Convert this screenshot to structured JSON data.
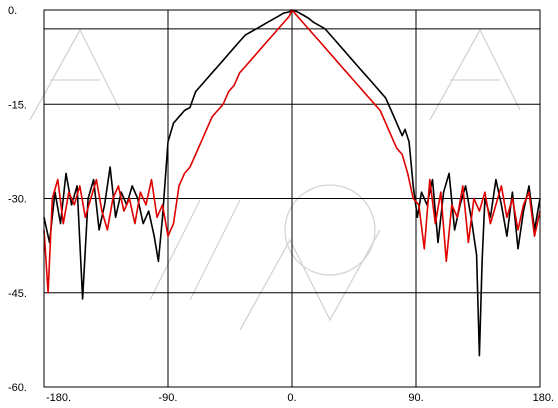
{
  "chart_data": {
    "type": "line",
    "title": "",
    "xlabel": "",
    "ylabel": "",
    "xlim": [
      -180,
      180
    ],
    "ylim": [
      -60,
      0
    ],
    "grid": true,
    "legend": "none",
    "x_ticks": [
      {
        "value": -180,
        "label": "-180."
      },
      {
        "value": -90,
        "label": "-90."
      },
      {
        "value": 0,
        "label": "0."
      },
      {
        "value": 90,
        "label": "90."
      },
      {
        "value": 180,
        "label": "180."
      }
    ],
    "y_ticks": [
      {
        "value": 0,
        "label": "0."
      },
      {
        "value": -15,
        "label": "-15."
      },
      {
        "value": -30,
        "label": "-30."
      },
      {
        "value": -45,
        "label": "-45."
      },
      {
        "value": -60,
        "label": "-60."
      }
    ],
    "series": [
      {
        "color": "#000000",
        "x": [
          -180,
          -176,
          -172,
          -168,
          -164,
          -160,
          -156,
          -152,
          -148,
          -144,
          -140,
          -136,
          -132,
          -128,
          -124,
          -120,
          -116,
          -112,
          -108,
          -104,
          -100,
          -97,
          -94,
          -90,
          -86,
          -82,
          -78,
          -74,
          -70,
          -66,
          -62,
          -58,
          -54,
          -50,
          -46,
          -42,
          -38,
          -34,
          -30,
          -26,
          -22,
          -18,
          -14,
          -10,
          -6,
          -2,
          0,
          4,
          8,
          12,
          16,
          20,
          24,
          28,
          32,
          36,
          40,
          44,
          48,
          52,
          56,
          60,
          64,
          68,
          72,
          76,
          80,
          82,
          85,
          88,
          91,
          94,
          98,
          102,
          106,
          110,
          114,
          118,
          122,
          126,
          130,
          134,
          136,
          138,
          140,
          144,
          148,
          152,
          156,
          160,
          164,
          168,
          172,
          176,
          180
        ],
        "y": [
          -33,
          -37,
          -29,
          -34,
          -26,
          -31,
          -28,
          -46,
          -30,
          -27,
          -35,
          -31,
          -25,
          -33,
          -29,
          -31,
          -28,
          -30,
          -34,
          -32,
          -36,
          -40,
          -33,
          -21,
          -18,
          -17,
          -16,
          -15.5,
          -13,
          -12,
          -11,
          -10,
          -9,
          -8,
          -7,
          -6,
          -5,
          -4,
          -3.5,
          -3,
          -2.5,
          -2,
          -1.5,
          -1,
          -0.5,
          -0.3,
          0,
          -0.3,
          -0.8,
          -1.3,
          -2,
          -2.5,
          -3,
          -4,
          -5,
          -6,
          -7,
          -8,
          -9,
          -10,
          -11,
          -12,
          -13,
          -14,
          -16,
          -18,
          -20,
          -19,
          -21,
          -28,
          -33,
          -29,
          -31,
          -27,
          -37,
          -29,
          -26,
          -35,
          -31,
          -28,
          -33,
          -39,
          -55,
          -40,
          -30,
          -33,
          -27,
          -31,
          -36,
          -29,
          -38,
          -32,
          -28,
          -35,
          -30
        ],
        "values_in": "dB"
      },
      {
        "color": "#e00000",
        "x": [
          -180,
          -177,
          -174,
          -170,
          -166,
          -162,
          -158,
          -154,
          -150,
          -146,
          -142,
          -138,
          -134,
          -130,
          -126,
          -122,
          -118,
          -114,
          -110,
          -106,
          -102,
          -98,
          -94,
          -90,
          -86,
          -82,
          -78,
          -74,
          -70,
          -66,
          -62,
          -58,
          -54,
          -50,
          -46,
          -42,
          -38,
          -34,
          -30,
          -26,
          -22,
          -18,
          -14,
          -10,
          -6,
          -2,
          0,
          4,
          8,
          12,
          16,
          20,
          24,
          28,
          32,
          36,
          40,
          44,
          48,
          52,
          56,
          60,
          64,
          68,
          72,
          76,
          80,
          84,
          88,
          92,
          96,
          100,
          104,
          108,
          112,
          116,
          120,
          124,
          128,
          132,
          136,
          140,
          144,
          148,
          152,
          156,
          160,
          164,
          168,
          172,
          176,
          180
        ],
        "y": [
          -35,
          -45,
          -30,
          -27,
          -34,
          -29,
          -31,
          -28,
          -33,
          -30,
          -27,
          -32,
          -35,
          -30,
          -28,
          -32,
          -30,
          -34,
          -29,
          -31,
          -27,
          -33,
          -31,
          -36,
          -34,
          -28,
          -26,
          -25,
          -23,
          -21,
          -19,
          -17,
          -16,
          -15,
          -13,
          -12,
          -10,
          -9,
          -8,
          -7,
          -6,
          -5,
          -4,
          -3,
          -2,
          -1,
          0,
          -1,
          -2,
          -3,
          -4,
          -5,
          -6,
          -7,
          -8,
          -9,
          -10,
          -11,
          -12,
          -13,
          -14,
          -15,
          -16,
          -18,
          -20,
          -22,
          -23,
          -26,
          -30,
          -31,
          -38,
          -27,
          -34,
          -29,
          -40,
          -31,
          -33,
          -28,
          -37,
          -30,
          -32,
          -29,
          -34,
          -31,
          -28,
          -33,
          -30,
          -35,
          -31,
          -29,
          -36,
          -32
        ],
        "values_in": "dB"
      }
    ]
  }
}
